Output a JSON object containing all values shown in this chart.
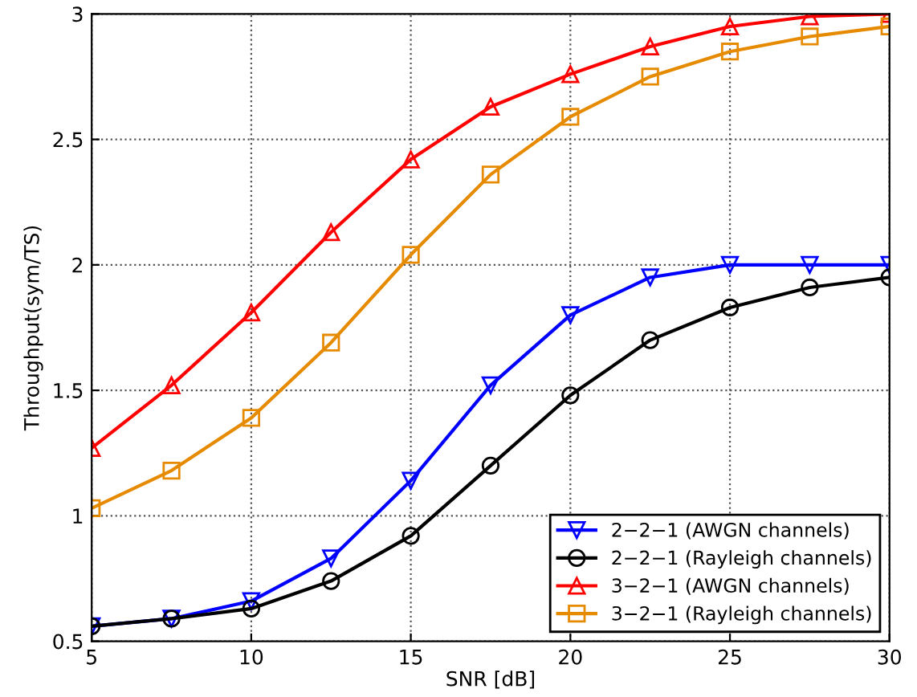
{
  "chart_data": {
    "type": "line",
    "xlabel": "SNR [dB]",
    "ylabel": "Throughput(sym/TS)",
    "x": [
      5,
      7.5,
      10,
      12.5,
      15,
      17.5,
      20,
      22.5,
      25,
      27.5,
      30
    ],
    "series": [
      {
        "name": "2−2−1 (AWGN channels)",
        "color": "#0000ff",
        "marker": "triangle_down",
        "values": [
          0.56,
          0.59,
          0.66,
          0.83,
          1.14,
          1.52,
          1.8,
          1.95,
          2.0,
          2.0,
          2.0
        ]
      },
      {
        "name": "2−2−1 (Rayleigh channels)",
        "color": "#000000",
        "marker": "circle",
        "values": [
          0.56,
          0.59,
          0.63,
          0.74,
          0.92,
          1.2,
          1.48,
          1.7,
          1.83,
          1.91,
          1.95
        ]
      },
      {
        "name": "3−2−1 (AWGN channels)",
        "color": "#ff0000",
        "marker": "triangle",
        "values": [
          1.27,
          1.52,
          1.81,
          2.13,
          2.42,
          2.63,
          2.76,
          2.87,
          2.95,
          2.99,
          3.0
        ]
      },
      {
        "name": "3−2−1 (Rayleigh channels)",
        "color": "#e68a00",
        "marker": "square",
        "values": [
          1.03,
          1.18,
          1.39,
          1.69,
          2.04,
          2.36,
          2.59,
          2.75,
          2.85,
          2.91,
          2.95
        ]
      }
    ],
    "xlim": [
      5,
      30
    ],
    "ylim": [
      0.5,
      3
    ],
    "xticks": [
      5,
      10,
      15,
      20,
      25,
      30
    ],
    "yticks": [
      0.5,
      1,
      1.5,
      2,
      2.5,
      3
    ],
    "grid": true,
    "legend": "bottom right",
    "line_style": "solid"
  }
}
